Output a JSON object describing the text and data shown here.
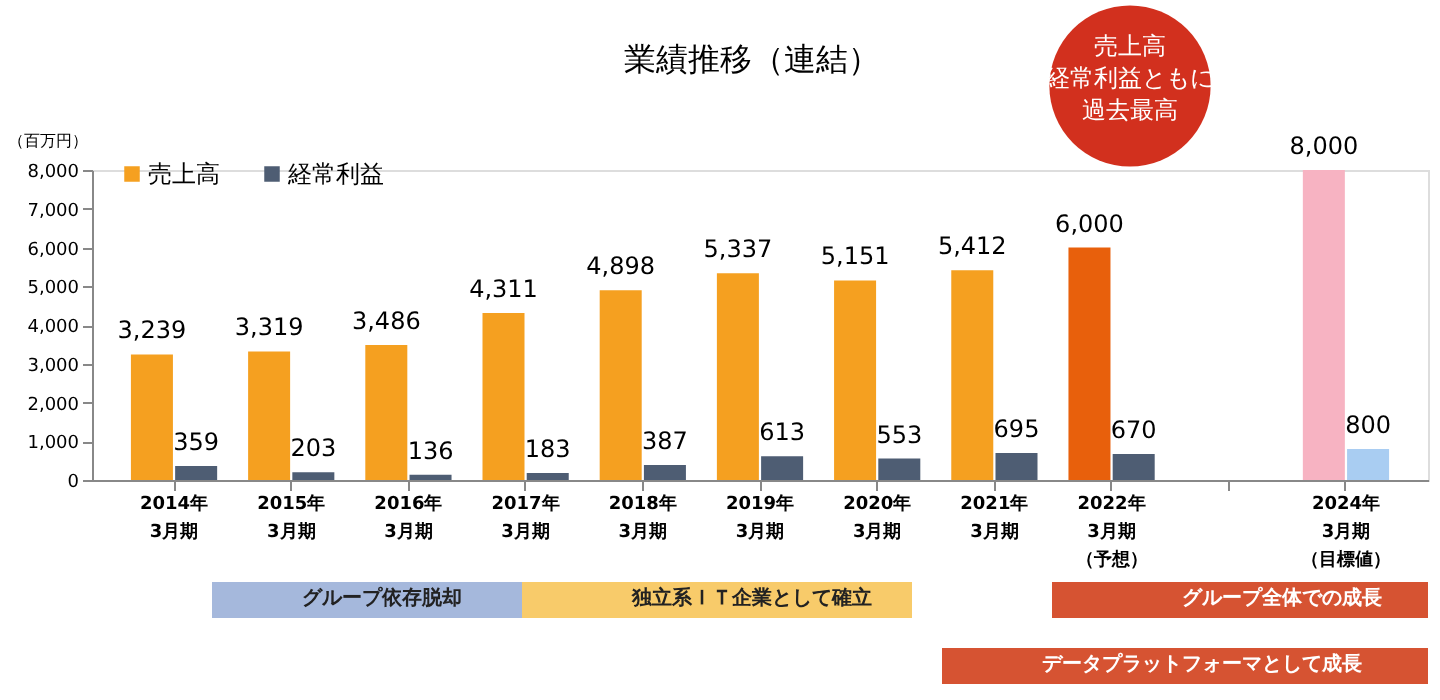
{
  "chart_data": {
    "type": "bar",
    "title": "業績推移（連結）",
    "ylabel": "（百万円）",
    "categories": [
      "2014年3月期",
      "2015年3月期",
      "2016年3月期",
      "2017年3月期",
      "2018年3月期",
      "2019年3月期",
      "2020年3月期",
      "2021年3月期",
      "2022年3月期（予想）",
      null,
      "2024年3月期（目標値）"
    ],
    "series": [
      {
        "name": "売上高",
        "color": "#f5a020",
        "colors": [
          "#f5a020",
          "#f5a020",
          "#f5a020",
          "#f5a020",
          "#f5a020",
          "#f5a020",
          "#f5a020",
          "#f5a020",
          "#e8600c",
          null,
          "#f7b3c2"
        ],
        "values": [
          3239,
          3319,
          3486,
          4311,
          4898,
          5337,
          5151,
          5412,
          6000,
          null,
          8000
        ],
        "value_labels": [
          "3,239",
          "3,319",
          "3,486",
          "4,311",
          "4,898",
          "5,337",
          "5,151",
          "5,412",
          "6,000",
          null,
          "8,000"
        ]
      },
      {
        "name": "経常利益",
        "color": "#4e5d73",
        "colors": [
          "#4e5d73",
          "#4e5d73",
          "#4e5d73",
          "#4e5d73",
          "#4e5d73",
          "#4e5d73",
          "#4e5d73",
          "#4e5d73",
          "#4e5d73",
          null,
          "#a9cdf2"
        ],
        "values": [
          359,
          203,
          136,
          183,
          387,
          613,
          553,
          695,
          670,
          null,
          800
        ],
        "value_labels": [
          "359",
          "203",
          "136",
          "183",
          "387",
          "613",
          "553",
          "695",
          "670",
          null,
          "800"
        ]
      }
    ],
    "ylim": [
      0,
      8000
    ],
    "yticks": [
      0,
      {
        "value": 1000,
        "label": "1,000"
      },
      {
        "value": 2000,
        "label": "2,000"
      },
      {
        "value": 3000,
        "label": "3,000"
      },
      {
        "value": 4000,
        "label": "4,000"
      },
      {
        "value": 5000,
        "label": "5,000"
      },
      {
        "value": 6000,
        "label": "6,000"
      },
      {
        "value": 7000,
        "label": "7,000"
      },
      {
        "value": 8000,
        "label": "8,000"
      }
    ],
    "legend": "top left",
    "grid": false,
    "annotations": [
      "売上高経常利益ともに過去最高",
      "グループ依存脱却",
      "独立系ＩＴ企業として確立",
      "グループ全体での成長",
      "データプラットフォーマとして成長"
    ]
  }
}
